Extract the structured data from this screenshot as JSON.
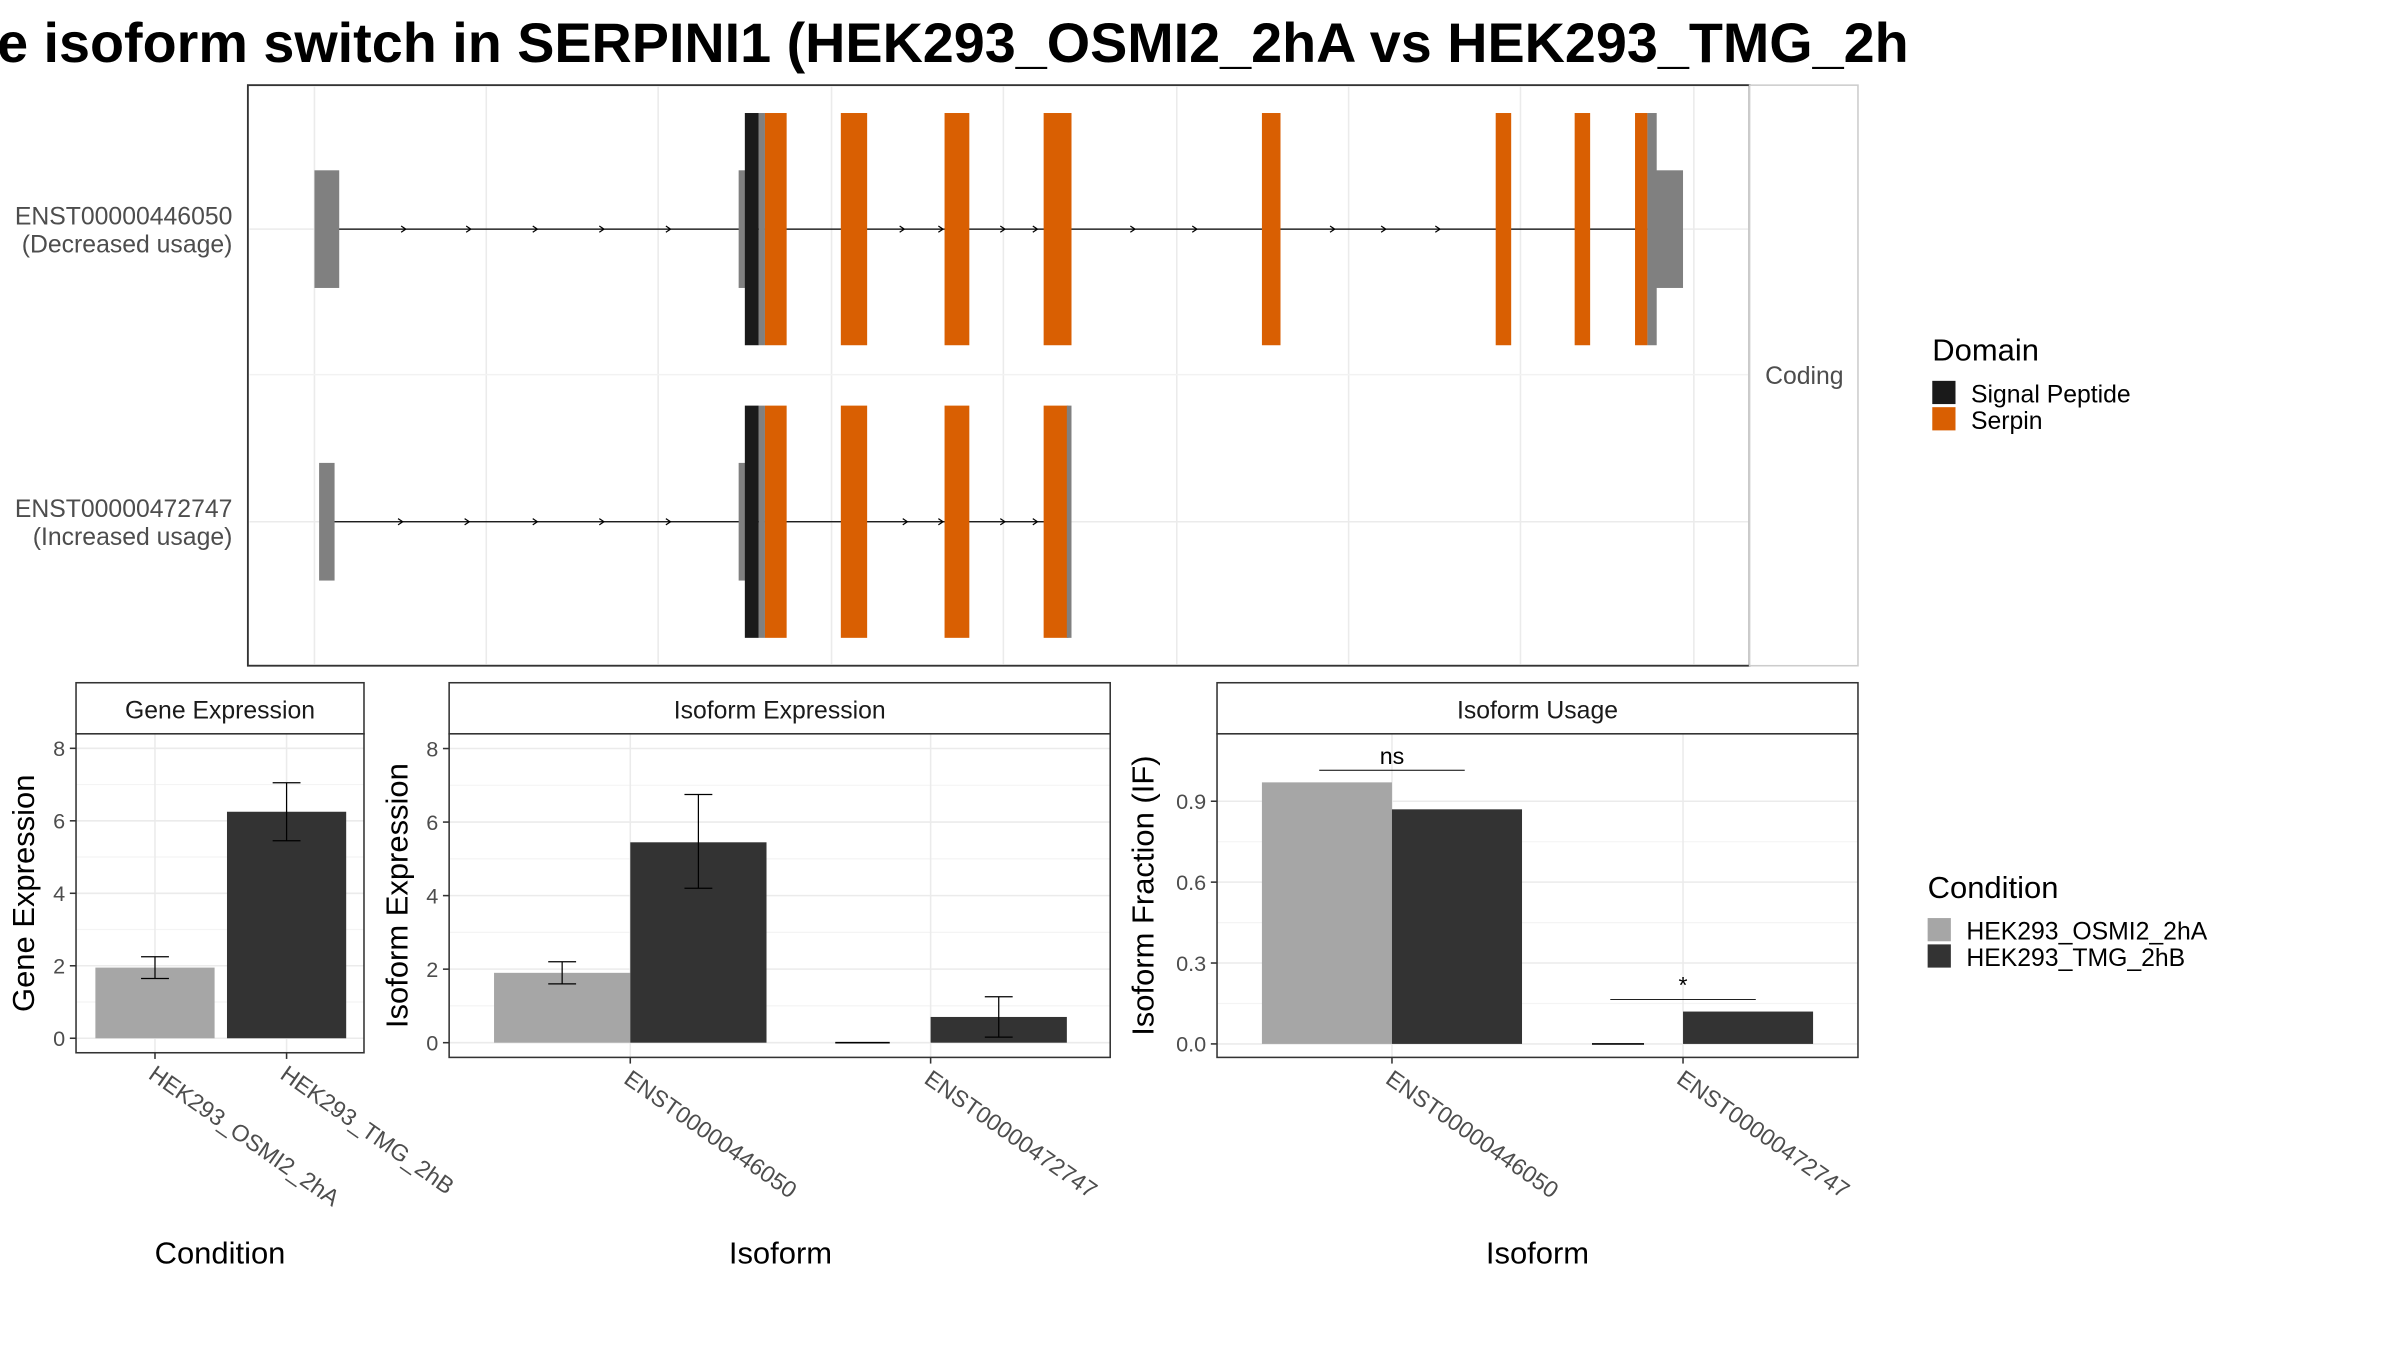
{
  "title": "e isoform switch in SERPINI1 (HEK293_OSMI2_2hA vs HEK293_TMG_2h",
  "colors": {
    "signal_peptide": "#1a1a1a",
    "serpin": "#d95f02",
    "noncoding": "#808080",
    "cond_a": "#a6a6a6",
    "cond_b": "#333333"
  },
  "transcripts": [
    {
      "id": "ENST00000446050",
      "usage": "(Decreased usage)"
    },
    {
      "id": "ENST00000472747",
      "usage": "(Increased usage)"
    }
  ],
  "facet_label": "Coding",
  "domain_legend": {
    "title": "Domain",
    "items": [
      "Signal Peptide",
      "Serpin"
    ]
  },
  "condition_legend": {
    "title": "Condition",
    "items": [
      "HEK293_OSMI2_2hA",
      "HEK293_TMG_2hB"
    ]
  },
  "chart_data": [
    {
      "type": "bar",
      "title": "Gene Expression",
      "xlabel": "Condition",
      "ylabel": "Gene Expression",
      "ylim": [
        -0.4,
        8.4
      ],
      "yticks": [
        "0",
        "2",
        "4",
        "6",
        "8"
      ],
      "categories": [
        "HEK293_OSMI2_2hA",
        "HEK293_TMG_2hB"
      ],
      "values": [
        1.95,
        6.25
      ],
      "error": [
        [
          1.65,
          2.25
        ],
        [
          5.45,
          7.05
        ]
      ]
    },
    {
      "type": "bar",
      "title": "Isoform Expression",
      "xlabel": "Isoform",
      "ylabel": "Isoform Expression",
      "ylim": [
        -0.4,
        8.4
      ],
      "yticks": [
        "0",
        "2",
        "4",
        "6",
        "8"
      ],
      "categories": [
        "ENST00000446050",
        "ENST00000472747"
      ],
      "series": [
        {
          "name": "HEK293_OSMI2_2hA",
          "values": [
            1.9,
            0.0
          ],
          "error": [
            [
              1.6,
              2.2
            ],
            [
              0.0,
              0.0
            ]
          ]
        },
        {
          "name": "HEK293_TMG_2hB",
          "values": [
            5.45,
            0.7
          ],
          "error": [
            [
              4.2,
              6.75
            ],
            [
              0.15,
              1.25
            ]
          ]
        }
      ]
    },
    {
      "type": "bar",
      "title": "Isoform Usage",
      "xlabel": "Isoform",
      "ylabel": "Isoform Fraction (IF)",
      "ylim": [
        -0.05,
        1.15
      ],
      "yticks": [
        "0.0",
        "0.3",
        "0.6",
        "0.9"
      ],
      "categories": [
        "ENST00000446050",
        "ENST00000472747"
      ],
      "series": [
        {
          "name": "HEK293_OSMI2_2hA",
          "values": [
            0.97,
            0.0
          ]
        },
        {
          "name": "HEK293_TMG_2hB",
          "values": [
            0.87,
            0.12
          ]
        }
      ],
      "significance": [
        "ns",
        "*"
      ]
    }
  ]
}
